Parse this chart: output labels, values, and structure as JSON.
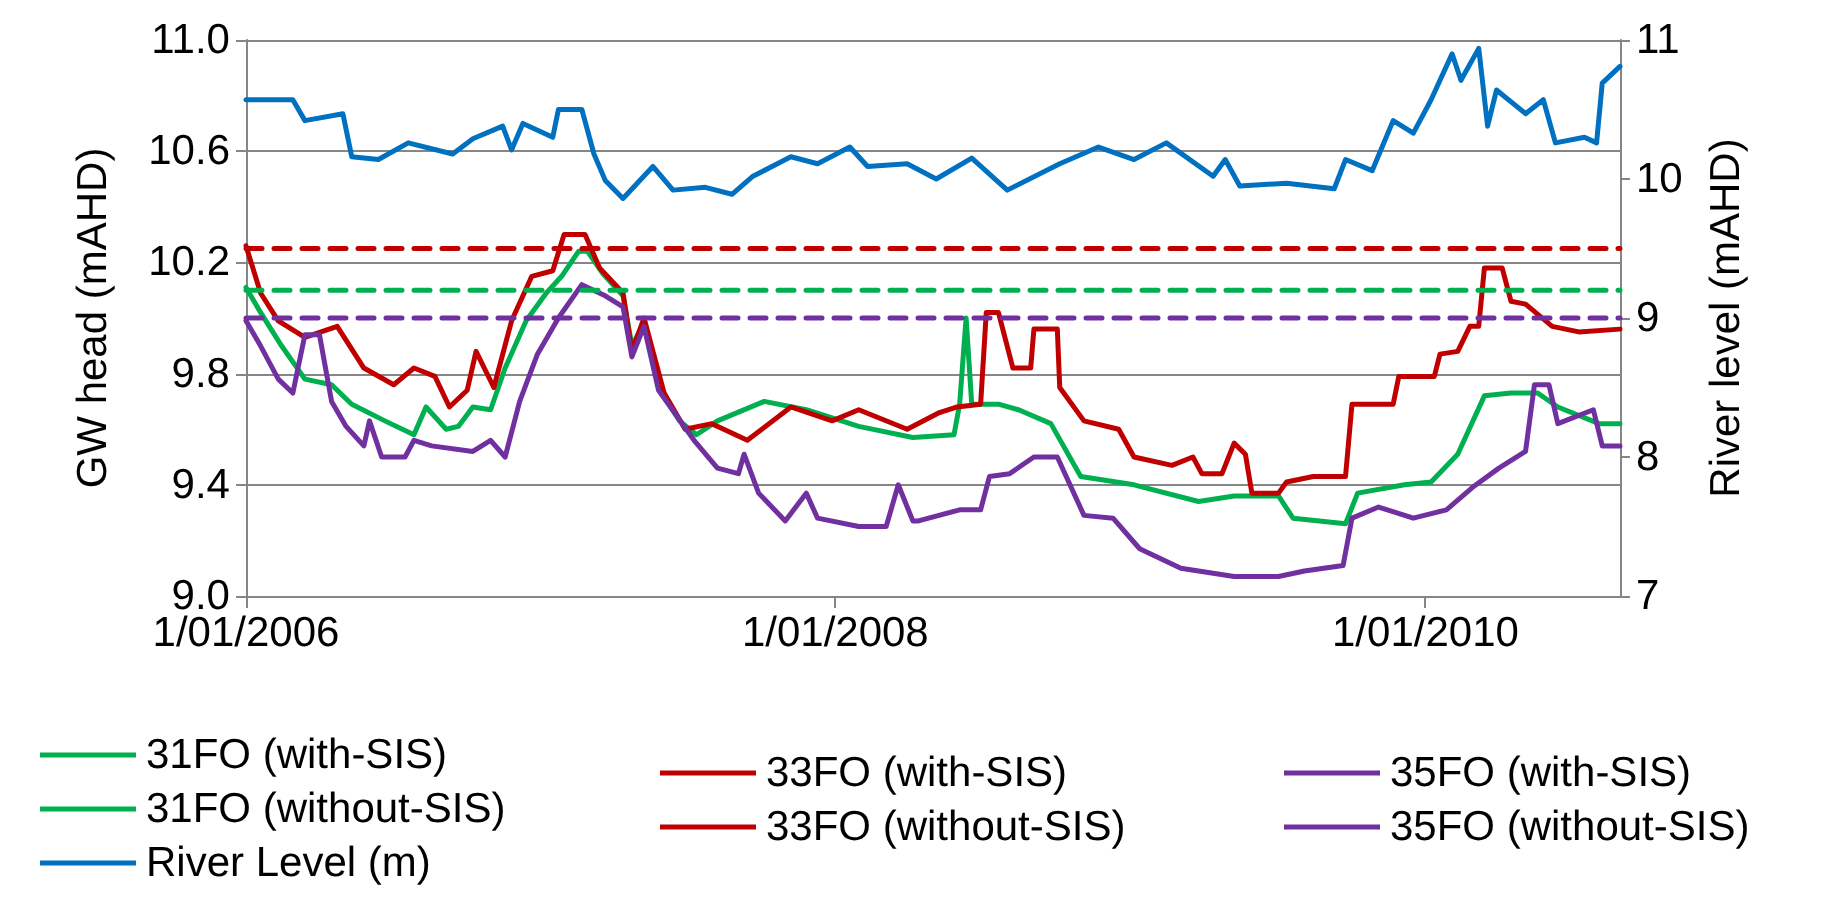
{
  "chart_data": {
    "type": "line",
    "ylabel": "GW head (mAHD)",
    "y2label": "River level (mAHD)",
    "xlim": [
      "2006-01-01",
      "2010-08-30"
    ],
    "xticks": [
      {
        "value": "2006-01-01",
        "label": "1/01/2006"
      },
      {
        "value": "2008-01-01",
        "label": "1/01/2008"
      },
      {
        "value": "2010-01-01",
        "label": "1/01/2010"
      }
    ],
    "ylim": [
      9.0,
      11.0
    ],
    "yticks": [
      {
        "value": 9.0,
        "label": "9.0"
      },
      {
        "value": 9.4,
        "label": "9.4"
      },
      {
        "value": 9.8,
        "label": "9.8"
      },
      {
        "value": 10.2,
        "label": "10.2"
      },
      {
        "value": 10.6,
        "label": "10.6"
      },
      {
        "value": 11.0,
        "label": "11.0"
      }
    ],
    "y2lim": [
      7,
      11
    ],
    "y2ticks": [
      7,
      8,
      9,
      10,
      11
    ],
    "grid": "y",
    "legend": "bottom",
    "marker": "none",
    "series": [
      {
        "name": "31FO (with-SIS)",
        "color": "#00b050",
        "line_style": "solid",
        "x": [
          "2006-01-01",
          "2006-01-19",
          "2006-02-14",
          "2006-03-15",
          "2006-04-17",
          "2006-05-12",
          "2006-06-22",
          "2006-07-28",
          "2006-08-12",
          "2006-09-06",
          "2006-09-21",
          "2006-10-09",
          "2006-10-31",
          "2006-11-18",
          "2006-12-14",
          "2007-01-08",
          "2007-01-27",
          "2007-02-17",
          "2007-02-28",
          "2007-03-19",
          "2007-04-13",
          "2007-04-24",
          "2007-05-09",
          "2007-05-27",
          "2007-06-22",
          "2007-07-13",
          "2007-08-08",
          "2007-10-05",
          "2007-11-26",
          "2008-01-30",
          "2008-04-06",
          "2008-05-27",
          "2008-06-03",
          "2008-06-11",
          "2008-06-18",
          "2008-07-21",
          "2008-08-15",
          "2008-09-24",
          "2008-10-31",
          "2009-01-05",
          "2009-03-26",
          "2009-05-09",
          "2009-07-03",
          "2009-07-21",
          "2009-09-24",
          "2009-10-09",
          "2009-12-06",
          "2010-01-08",
          "2010-02-10",
          "2010-03-15",
          "2010-04-17",
          "2010-05-20",
          "2010-06-14",
          "2010-08-04",
          "2010-08-30"
        ],
        "values": [
          10.11,
          10.02,
          9.9,
          9.78,
          9.76,
          9.69,
          9.63,
          9.58,
          9.68,
          9.6,
          9.61,
          9.68,
          9.67,
          9.82,
          9.99,
          10.09,
          10.15,
          10.24,
          10.24,
          10.16,
          10.08,
          9.9,
          9.98,
          9.75,
          9.63,
          9.58,
          9.63,
          9.7,
          9.67,
          9.61,
          9.57,
          9.58,
          9.69,
          10.0,
          9.69,
          9.69,
          9.67,
          9.62,
          9.43,
          9.4,
          9.34,
          9.36,
          9.36,
          9.28,
          9.26,
          9.37,
          9.4,
          9.41,
          9.51,
          9.72,
          9.73,
          9.73,
          9.68,
          9.62,
          9.62
        ]
      },
      {
        "name": "33FO (with-SIS)",
        "color": "#c00000",
        "line_style": "solid",
        "x": [
          "2006-01-01",
          "2006-01-19",
          "2006-02-10",
          "2006-03-15",
          "2006-04-24",
          "2006-05-27",
          "2006-07-03",
          "2006-07-28",
          "2006-08-23",
          "2006-09-10",
          "2006-10-02",
          "2006-10-13",
          "2006-11-04",
          "2006-11-26",
          "2006-12-21",
          "2007-01-16",
          "2007-01-30",
          "2007-02-25",
          "2007-03-15",
          "2007-04-13",
          "2007-04-24",
          "2007-05-09",
          "2007-06-03",
          "2007-06-29",
          "2007-08-01",
          "2007-09-14",
          "2007-11-07",
          "2007-12-28",
          "2008-01-30",
          "2008-03-30",
          "2008-05-09",
          "2008-05-31",
          "2008-06-29",
          "2008-07-06",
          "2008-07-21",
          "2008-08-08",
          "2008-08-30",
          "2008-09-03",
          "2008-10-02",
          "2008-10-05",
          "2008-11-04",
          "2008-12-17",
          "2009-01-05",
          "2009-02-21",
          "2009-03-19",
          "2009-03-30",
          "2009-04-24",
          "2009-05-09",
          "2009-05-23",
          "2009-05-31",
          "2009-07-03",
          "2009-07-13",
          "2009-08-15",
          "2009-09-24",
          "2009-10-02",
          "2009-11-22",
          "2009-11-29",
          "2010-01-12",
          "2010-01-19",
          "2010-02-10",
          "2010-02-25",
          "2010-03-08",
          "2010-03-15",
          "2010-04-06",
          "2010-04-17",
          "2010-05-05",
          "2010-06-07",
          "2010-07-10",
          "2010-08-30"
        ],
        "values": [
          10.26,
          10.09,
          9.99,
          9.93,
          9.97,
          9.82,
          9.76,
          9.82,
          9.79,
          9.68,
          9.74,
          9.88,
          9.75,
          9.99,
          10.15,
          10.17,
          10.3,
          10.3,
          10.18,
          10.09,
          9.88,
          10.0,
          9.73,
          9.6,
          9.62,
          9.56,
          9.68,
          9.63,
          9.67,
          9.6,
          9.66,
          9.68,
          9.69,
          10.02,
          10.02,
          9.82,
          9.82,
          9.96,
          9.96,
          9.75,
          9.63,
          9.6,
          9.5,
          9.47,
          9.5,
          9.44,
          9.44,
          9.55,
          9.51,
          9.37,
          9.37,
          9.41,
          9.43,
          9.43,
          9.69,
          9.69,
          9.79,
          9.79,
          9.87,
          9.88,
          9.97,
          9.97,
          10.18,
          10.18,
          10.06,
          10.05,
          9.97,
          9.95,
          9.96
        ]
      },
      {
        "name": "35FO (with-SIS)",
        "color": "#7030a0",
        "line_style": "solid",
        "x": [
          "2006-01-01",
          "2006-01-19",
          "2006-02-10",
          "2006-02-28",
          "2006-03-15",
          "2006-04-02",
          "2006-04-17",
          "2006-05-05",
          "2006-05-27",
          "2006-06-03",
          "2006-06-18",
          "2006-07-17",
          "2006-07-28",
          "2006-08-19",
          "2006-10-09",
          "2006-10-31",
          "2006-11-18",
          "2006-12-06",
          "2006-12-28",
          "2007-01-23",
          "2007-02-21",
          "2007-03-22",
          "2007-04-13",
          "2007-04-24",
          "2007-05-09",
          "2007-05-27",
          "2007-07-10",
          "2007-08-08",
          "2007-09-03",
          "2007-09-10",
          "2007-09-28",
          "2007-10-31",
          "2007-11-26",
          "2007-12-10",
          "2008-01-30",
          "2008-03-04",
          "2008-03-19",
          "2008-04-06",
          "2008-04-13",
          "2008-06-03",
          "2008-06-29",
          "2008-07-10",
          "2008-08-04",
          "2008-09-03",
          "2008-10-02",
          "2008-11-04",
          "2008-12-10",
          "2009-01-12",
          "2009-03-04",
          "2009-05-09",
          "2009-07-03",
          "2009-08-04",
          "2009-09-21",
          "2009-10-02",
          "2009-11-04",
          "2009-12-17",
          "2010-01-27",
          "2010-02-28",
          "2010-04-02",
          "2010-05-05",
          "2010-05-16",
          "2010-06-03",
          "2010-06-14",
          "2010-07-28",
          "2010-08-08",
          "2010-08-30"
        ],
        "values": [
          9.99,
          9.9,
          9.78,
          9.73,
          9.94,
          9.94,
          9.7,
          9.61,
          9.54,
          9.63,
          9.5,
          9.5,
          9.56,
          9.54,
          9.52,
          9.56,
          9.5,
          9.7,
          9.87,
          10.0,
          10.12,
          10.08,
          10.04,
          9.86,
          9.97,
          9.74,
          9.56,
          9.46,
          9.44,
          9.51,
          9.37,
          9.27,
          9.37,
          9.28,
          9.25,
          9.25,
          9.4,
          9.27,
          9.27,
          9.31,
          9.31,
          9.43,
          9.44,
          9.5,
          9.5,
          9.29,
          9.28,
          9.17,
          9.1,
          9.07,
          9.07,
          9.09,
          9.11,
          9.28,
          9.32,
          9.28,
          9.31,
          9.39,
          9.46,
          9.52,
          9.76,
          9.76,
          9.62,
          9.67,
          9.54,
          9.54
        ]
      },
      {
        "name": "31FO (without-SIS)",
        "color": "#00b050",
        "line_style": "dashed",
        "x": [
          "2006-01-01",
          "2010-08-30"
        ],
        "values": [
          10.1,
          10.1
        ]
      },
      {
        "name": "33FO (without-SIS)",
        "color": "#c00000",
        "line_style": "dashed",
        "x": [
          "2006-01-01",
          "2010-08-30"
        ],
        "values": [
          10.25,
          10.25
        ]
      },
      {
        "name": "35FO (without-SIS)",
        "color": "#7030a0",
        "line_style": "dashed",
        "x": [
          "2006-01-01",
          "2010-08-30"
        ],
        "values": [
          10.0,
          10.0
        ]
      },
      {
        "name": "River Level (m)",
        "color": "#0070c0",
        "line_style": "solid",
        "axis": "y2",
        "x": [
          "2006-01-01",
          "2006-02-28",
          "2006-03-15",
          "2006-05-01",
          "2006-05-12",
          "2006-06-14",
          "2006-07-21",
          "2006-09-14",
          "2006-10-09",
          "2006-11-15",
          "2006-11-26",
          "2006-12-10",
          "2007-01-16",
          "2007-01-23",
          "2007-02-21",
          "2007-03-08",
          "2007-03-22",
          "2007-04-13",
          "2007-05-20",
          "2007-06-14",
          "2007-07-24",
          "2007-08-26",
          "2007-09-21",
          "2007-11-07",
          "2007-12-10",
          "2008-01-19",
          "2008-02-10",
          "2008-03-30",
          "2008-05-05",
          "2008-06-18",
          "2008-08-01",
          "2008-10-05",
          "2008-11-22",
          "2009-01-05",
          "2009-02-14",
          "2009-04-13",
          "2009-04-28",
          "2009-05-16",
          "2009-07-13",
          "2009-09-10",
          "2009-09-24",
          "2009-10-27",
          "2009-11-22",
          "2009-12-17",
          "2010-01-08",
          "2010-02-03",
          "2010-02-14",
          "2010-03-08",
          "2010-03-19",
          "2010-03-30",
          "2010-05-05",
          "2010-05-27",
          "2010-06-11",
          "2010-07-17",
          "2010-08-01",
          "2010-08-08",
          "2010-08-30"
        ],
        "values": [
          10.57,
          10.57,
          10.42,
          10.47,
          10.16,
          10.14,
          10.26,
          10.18,
          10.29,
          10.38,
          10.21,
          10.4,
          10.3,
          10.5,
          10.5,
          10.18,
          9.99,
          9.86,
          10.09,
          9.92,
          9.94,
          9.89,
          10.02,
          10.16,
          10.11,
          10.23,
          10.09,
          10.11,
          10.0,
          10.15,
          9.92,
          10.11,
          10.23,
          10.14,
          10.26,
          10.02,
          10.14,
          9.95,
          9.97,
          9.93,
          10.14,
          10.06,
          10.42,
          10.33,
          10.57,
          10.9,
          10.71,
          10.94,
          10.38,
          10.64,
          10.47,
          10.57,
          10.26,
          10.3,
          10.26,
          10.69,
          10.81
        ]
      }
    ]
  }
}
